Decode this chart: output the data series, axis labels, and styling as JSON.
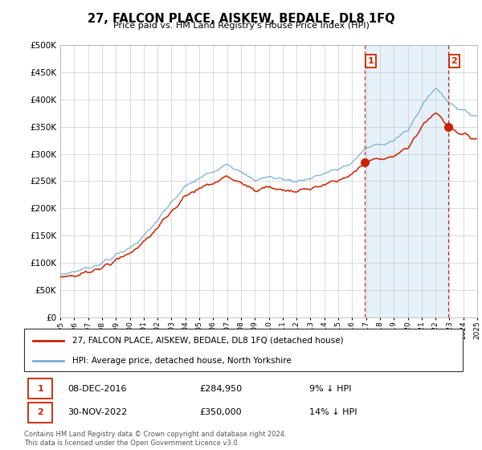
{
  "title": "27, FALCON PLACE, AISKEW, BEDALE, DL8 1FQ",
  "subtitle": "Price paid vs. HM Land Registry's House Price Index (HPI)",
  "legend_line1": "27, FALCON PLACE, AISKEW, BEDALE, DL8 1FQ (detached house)",
  "legend_line2": "HPI: Average price, detached house, North Yorkshire",
  "annotation1_date": "08-DEC-2016",
  "annotation1_price": "£284,950",
  "annotation1_pct": "9% ↓ HPI",
  "annotation2_date": "30-NOV-2022",
  "annotation2_price": "£350,000",
  "annotation2_pct": "14% ↓ HPI",
  "footer": "Contains HM Land Registry data © Crown copyright and database right 2024.\nThis data is licensed under the Open Government Licence v3.0.",
  "hpi_color": "#7bafd4",
  "price_color": "#cc2200",
  "vline_color": "#cc2200",
  "annotation_box_color": "#cc2200",
  "background_color": "#ffffff",
  "grid_color": "#cccccc",
  "ylim": [
    0,
    500000
  ],
  "yticks": [
    0,
    50000,
    100000,
    150000,
    200000,
    250000,
    300000,
    350000,
    400000,
    450000,
    500000
  ],
  "sale1_x": 2016.92,
  "sale1_y": 284950,
  "sale2_x": 2022.92,
  "sale2_y": 350000,
  "xmin": 1995,
  "xmax": 2025,
  "shade_color": "#d0e4f7",
  "shade_alpha": 0.5
}
